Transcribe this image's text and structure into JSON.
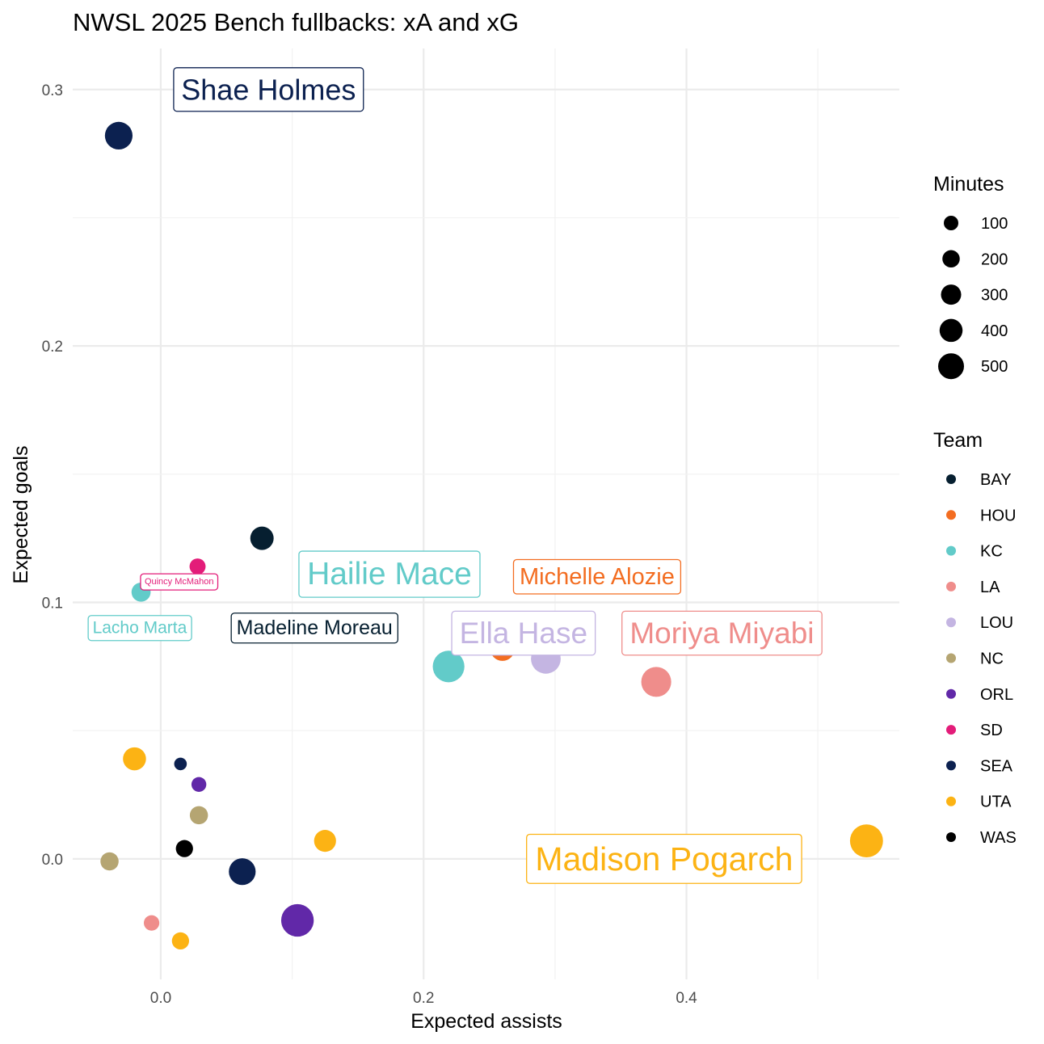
{
  "chart_data": {
    "type": "scatter",
    "title": "NWSL 2025 Bench fullbacks: xA and xG",
    "xlabel": "Expected assists",
    "ylabel": "Expected goals",
    "xlim": [
      -0.067,
      0.562
    ],
    "ylim": [
      -0.047,
      0.316
    ],
    "x_ticks": [
      0.0,
      0.2,
      0.4
    ],
    "x_tick_labels": [
      "0.0",
      "0.2",
      "0.4"
    ],
    "y_ticks": [
      0.0,
      0.1,
      0.2,
      0.3
    ],
    "y_tick_labels": [
      "0.0",
      "0.1",
      "0.2",
      "0.3"
    ],
    "grid": true,
    "legend_position": "right",
    "size_legend": {
      "title": "Minutes",
      "entries": [
        {
          "label": "100",
          "minutes": 100
        },
        {
          "label": "200",
          "minutes": 200
        },
        {
          "label": "300",
          "minutes": 300
        },
        {
          "label": "400",
          "minutes": 400
        },
        {
          "label": "500",
          "minutes": 500
        }
      ]
    },
    "color_legend": {
      "title": "Team",
      "entries": [
        {
          "team": "BAY",
          "color": "#061f30"
        },
        {
          "team": "HOU",
          "color": "#f36d21"
        },
        {
          "team": "KC",
          "color": "#62cbc9"
        },
        {
          "team": "LA",
          "color": "#ef8d8b"
        },
        {
          "team": "LOU",
          "color": "#c4b5e2"
        },
        {
          "team": "NC",
          "color": "#b5a572"
        },
        {
          "team": "ORL",
          "color": "#6128a8"
        },
        {
          "team": "SD",
          "color": "#e31c79"
        },
        {
          "team": "SEA",
          "color": "#0c2150"
        },
        {
          "team": "UTA",
          "color": "#fcb314"
        },
        {
          "team": "WAS",
          "color": "#000000"
        }
      ]
    },
    "points": [
      {
        "team": "SEA",
        "xa": -0.032,
        "xg": 0.282,
        "minutes": 400
      },
      {
        "team": "BAY",
        "xa": 0.077,
        "xg": 0.125,
        "minutes": 260
      },
      {
        "team": "SD",
        "xa": 0.028,
        "xg": 0.114,
        "minutes": 90
      },
      {
        "team": "KC",
        "xa": -0.015,
        "xg": 0.104,
        "minutes": 150
      },
      {
        "team": "KC",
        "xa": 0.219,
        "xg": 0.075,
        "minutes": 560
      },
      {
        "team": "HOU",
        "xa": 0.26,
        "xg": 0.082,
        "minutes": 300
      },
      {
        "team": "LOU",
        "xa": 0.293,
        "xg": 0.078,
        "minutes": 480
      },
      {
        "team": "LA",
        "xa": 0.377,
        "xg": 0.069,
        "minutes": 490
      },
      {
        "team": "UTA",
        "xa": -0.02,
        "xg": 0.039,
        "minutes": 250
      },
      {
        "team": "SEA",
        "xa": 0.015,
        "xg": 0.037,
        "minutes": 40
      },
      {
        "team": "ORL",
        "xa": 0.029,
        "xg": 0.029,
        "minutes": 70
      },
      {
        "team": "NC",
        "xa": 0.029,
        "xg": 0.017,
        "minutes": 130
      },
      {
        "team": "WAS",
        "xa": 0.018,
        "xg": 0.004,
        "minutes": 110
      },
      {
        "team": "UTA",
        "xa": 0.125,
        "xg": 0.007,
        "minutes": 220
      },
      {
        "team": "NC",
        "xa": -0.039,
        "xg": -0.001,
        "minutes": 130
      },
      {
        "team": "SEA",
        "xa": 0.062,
        "xg": -0.005,
        "minutes": 370
      },
      {
        "team": "ORL",
        "xa": 0.104,
        "xg": -0.024,
        "minutes": 600
      },
      {
        "team": "LA",
        "xa": -0.007,
        "xg": -0.025,
        "minutes": 80
      },
      {
        "team": "UTA",
        "xa": 0.015,
        "xg": -0.032,
        "minutes": 110
      },
      {
        "team": "UTA",
        "xa": 0.537,
        "xg": 0.007,
        "minutes": 620
      }
    ],
    "labels": [
      {
        "text": "Shae Holmes",
        "team": "SEA",
        "xa": 0.082,
        "xg": 0.3,
        "font_size": 36
      },
      {
        "text": "Hailie Mace",
        "team": "KC",
        "xa": 0.174,
        "xg": 0.111,
        "font_size": 39
      },
      {
        "text": "Michelle Alozie",
        "team": "HOU",
        "xa": 0.332,
        "xg": 0.11,
        "font_size": 29
      },
      {
        "text": "Quincy McMahon",
        "team": "SD",
        "xa": 0.014,
        "xg": 0.108,
        "font_size": 11
      },
      {
        "text": "Lacho Marta",
        "team": "KC",
        "xa": -0.016,
        "xg": 0.09,
        "font_size": 21
      },
      {
        "text": "Madeline Moreau",
        "team": "BAY",
        "xa": 0.117,
        "xg": 0.09,
        "font_size": 25
      },
      {
        "text": "Ella Hase",
        "team": "LOU",
        "xa": 0.276,
        "xg": 0.088,
        "font_size": 37
      },
      {
        "text": "Moriya Miyabi",
        "team": "LA",
        "xa": 0.427,
        "xg": 0.088,
        "font_size": 37
      },
      {
        "text": "Madison Pogarch",
        "team": "UTA",
        "xa": 0.383,
        "xg": 0.0,
        "font_size": 41
      }
    ]
  }
}
